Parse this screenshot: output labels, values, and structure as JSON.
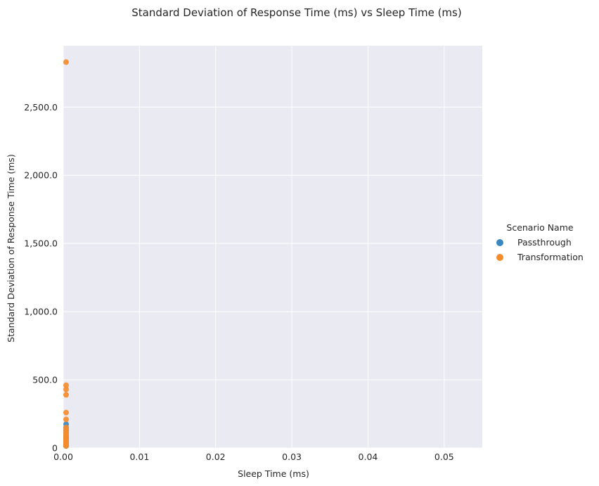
{
  "chart_data": {
    "type": "scatter",
    "title": "Standard Deviation of Response Time (ms) vs Sleep Time (ms)",
    "xlabel": "Sleep Time (ms)",
    "ylabel": "Standard Deviation of Response Time (ms)",
    "xlim": [
      0,
      0.055
    ],
    "ylim": [
      0,
      2950
    ],
    "xticks": [
      0,
      0.01,
      0.02,
      0.03,
      0.04,
      0.05
    ],
    "xtick_labels": [
      "0.00",
      "0.01",
      "0.02",
      "0.03",
      "0.04",
      "0.05"
    ],
    "yticks": [
      0,
      500,
      1000,
      1500,
      2000,
      2500
    ],
    "ytick_labels": [
      "0",
      "500.0",
      "1,000.0",
      "1,500.0",
      "2,000.0",
      "2,500.0"
    ],
    "grid": true,
    "legend": {
      "title": "Scenario Name",
      "placement": "right"
    },
    "series": [
      {
        "name": "Passthrough",
        "color": "#3a87c0",
        "x": [
          0,
          0,
          0,
          0,
          0,
          0,
          0,
          0,
          0,
          0,
          0,
          0
        ],
        "y": [
          175,
          150,
          130,
          110,
          90,
          80,
          70,
          55,
          45,
          35,
          25,
          15
        ]
      },
      {
        "name": "Transformation",
        "color": "#f58b2b",
        "x": [
          0,
          0,
          0,
          0,
          0,
          0,
          0,
          0,
          0,
          0,
          0,
          0,
          0,
          0,
          0,
          0,
          0,
          0
        ],
        "y": [
          2830,
          460,
          430,
          390,
          260,
          210,
          150,
          130,
          115,
          100,
          90,
          75,
          65,
          55,
          45,
          35,
          25,
          15
        ]
      }
    ]
  }
}
